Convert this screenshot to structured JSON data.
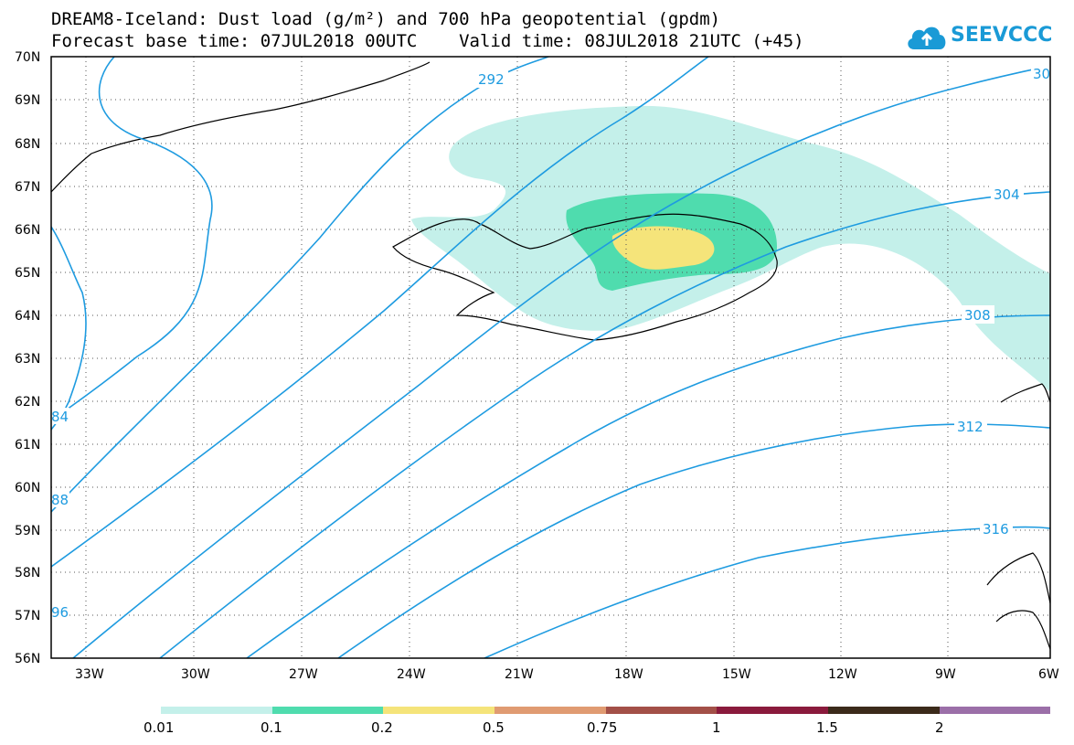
{
  "header": {
    "title_line1": "DREAM8-Iceland: Dust load (g/m²) and 700 hPa geopotential (gpdm)",
    "title_line2": "Forecast base time: 07JUL2018 00UTC    Valid time: 08JUL2018 21UTC (+45)"
  },
  "logo": {
    "text": "SEEVCCC",
    "icon": "cloud-upload-icon",
    "color": "#1a9ad6"
  },
  "map": {
    "lat_labels": [
      "70N",
      "69N",
      "68N",
      "67N",
      "66N",
      "65N",
      "64N",
      "63N",
      "62N",
      "61N",
      "60N",
      "59N",
      "58N",
      "57N",
      "56N"
    ],
    "lon_labels": [
      "33W",
      "30W",
      "27W",
      "24W",
      "21W",
      "18W",
      "15W",
      "12W",
      "9W",
      "6W"
    ],
    "contour_labels": [
      "292",
      "304",
      "308",
      "312",
      "316",
      "30",
      "84",
      "88",
      "96"
    ],
    "contour_color": "#1e9be0"
  },
  "legend": {
    "labels": [
      "0.01",
      "0.1",
      "0.2",
      "0.5",
      "0.75",
      "1",
      "1.5",
      "2"
    ],
    "colors": [
      "#c4f0ea",
      "#4fdcae",
      "#f5e47a",
      "#e09b72",
      "#a35048",
      "#8a1a3c",
      "#3b2a1a",
      "#9b6fa8"
    ]
  }
}
